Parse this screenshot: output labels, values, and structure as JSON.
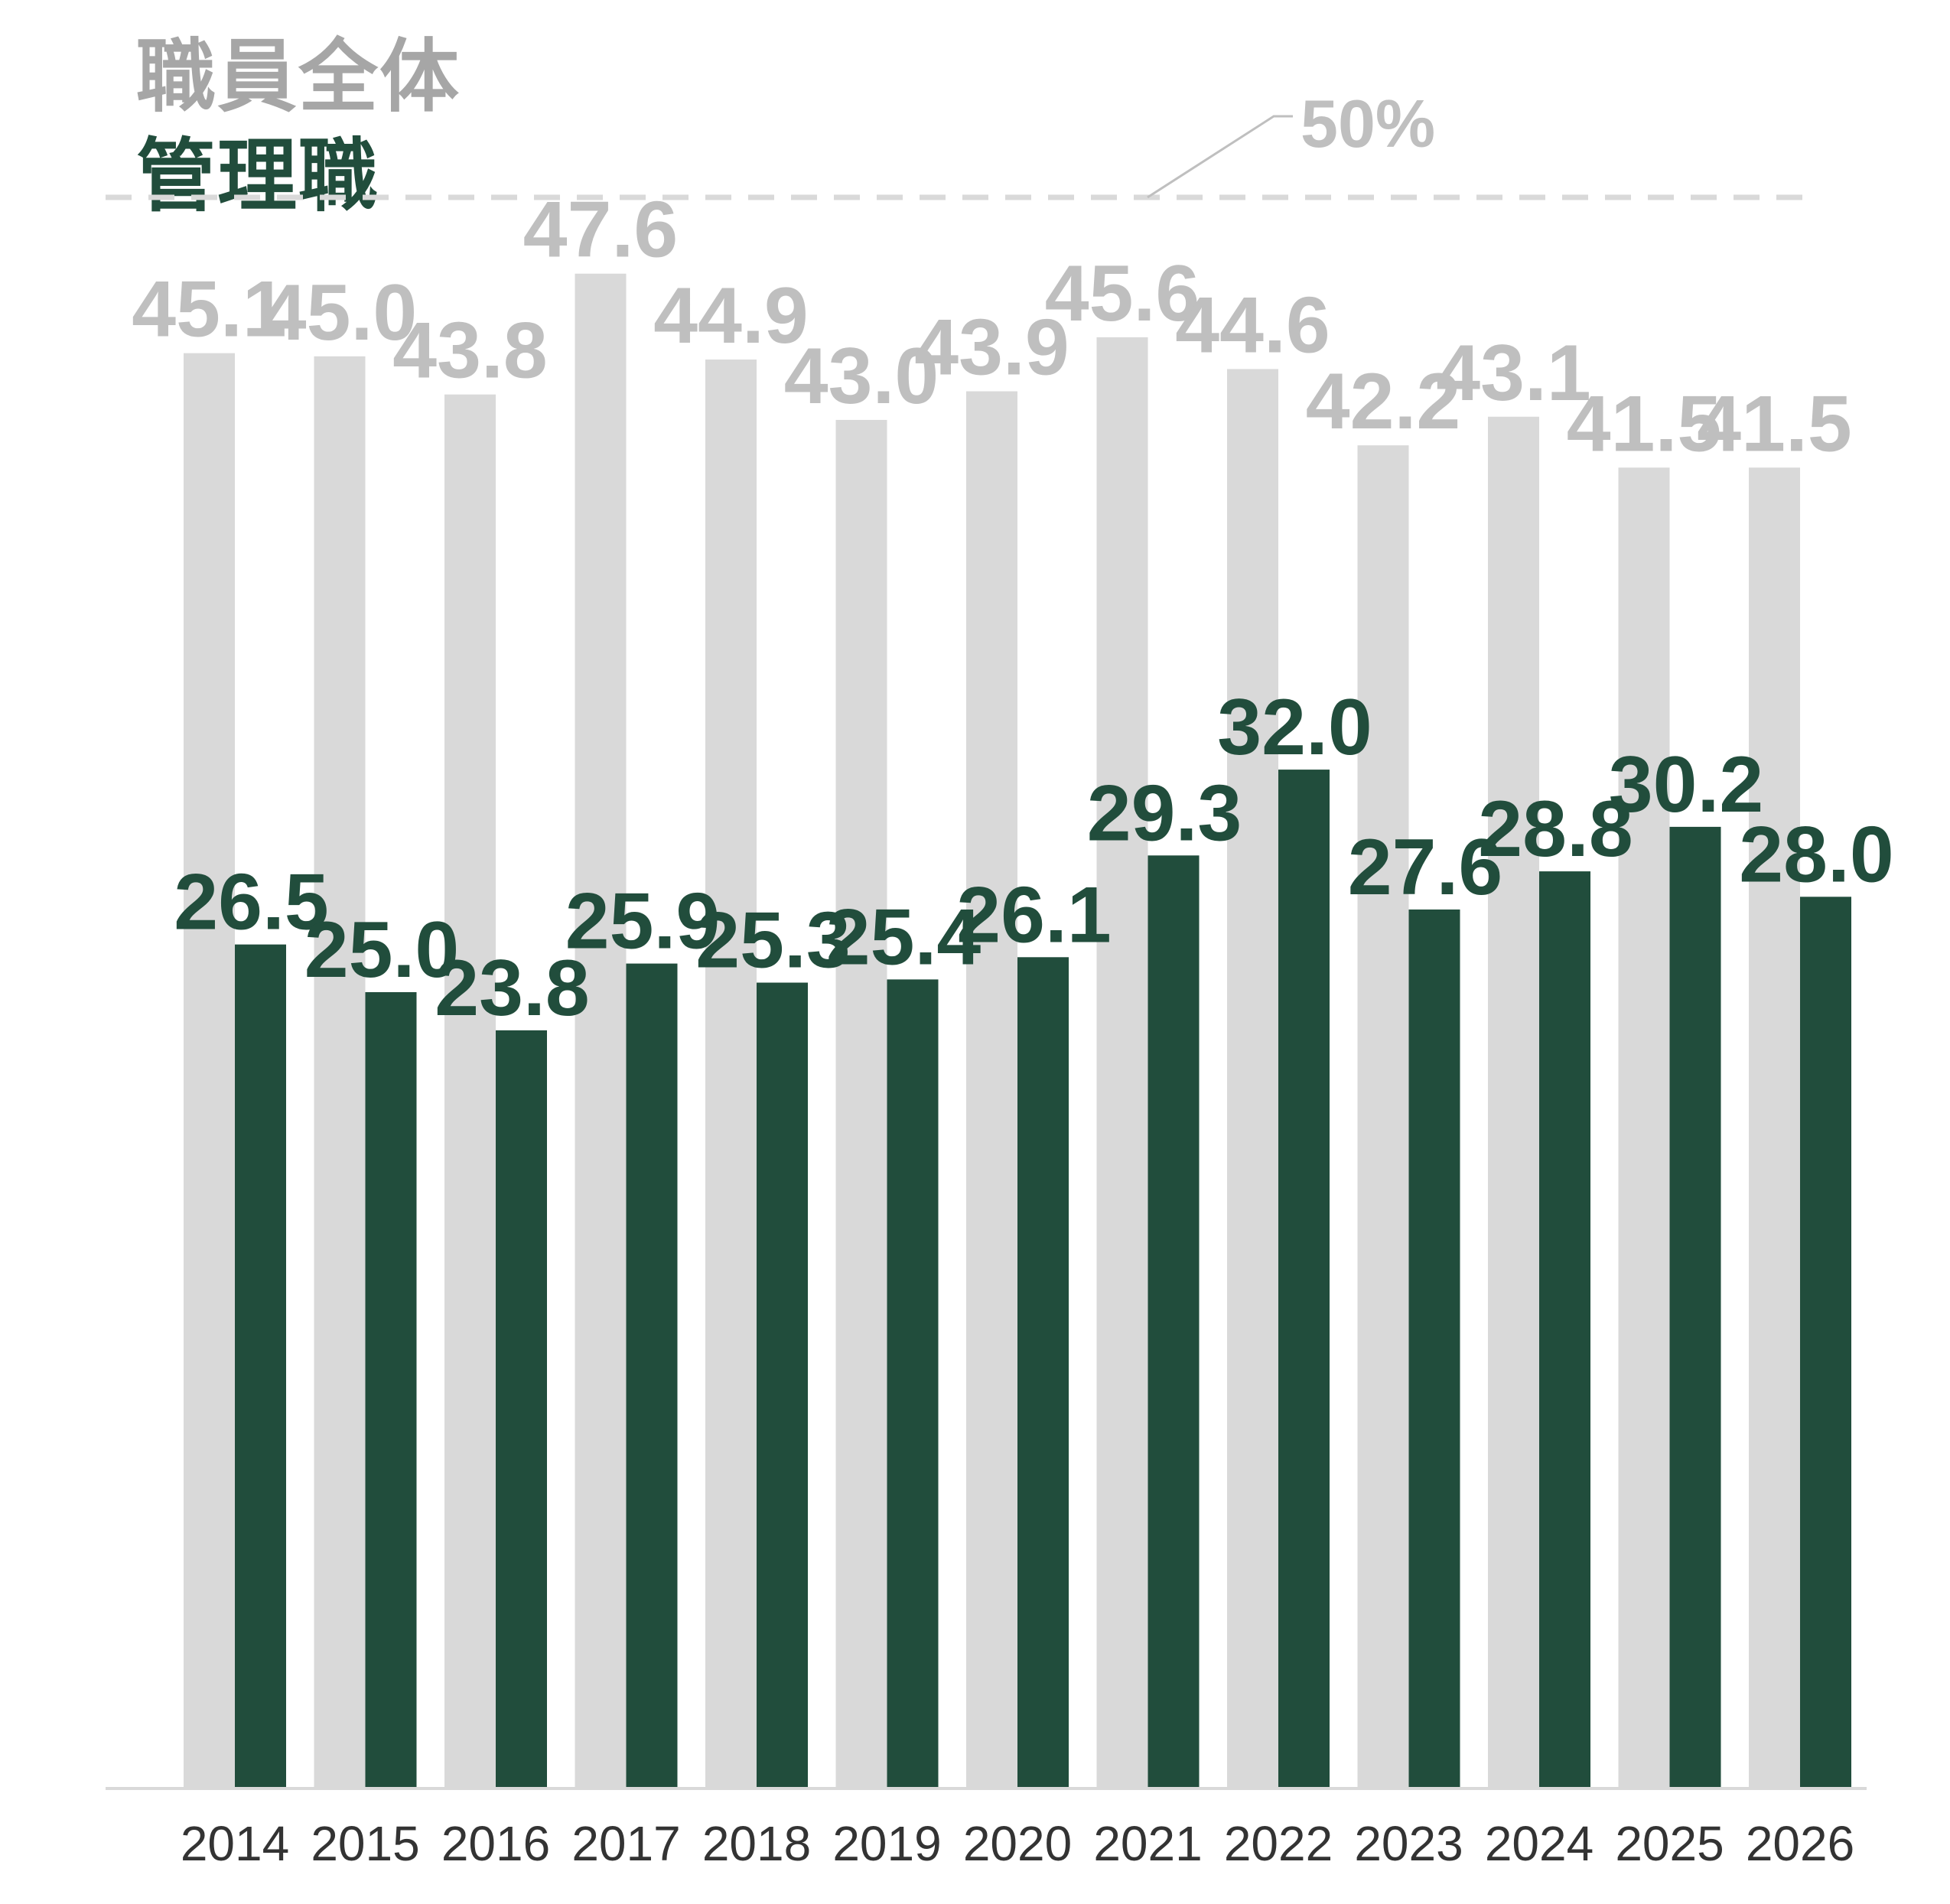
{
  "chart_data": {
    "type": "bar",
    "categories": [
      "2014",
      "2015",
      "2016",
      "2017",
      "2018",
      "2019",
      "2020",
      "2021",
      "2022",
      "2023",
      "2024",
      "2025",
      "2026"
    ],
    "series": [
      {
        "name": "職員全体",
        "color": "#d9d9d9",
        "label_color": "#bfbfbf",
        "values": [
          45.1,
          45.0,
          43.8,
          47.6,
          44.9,
          43.0,
          43.9,
          45.6,
          44.6,
          42.2,
          43.1,
          41.5,
          41.5
        ],
        "value_labels": [
          "45.1",
          "45.0",
          "43.8",
          "47.6",
          "44.9",
          "43.0",
          "43.9",
          "45.6",
          "44.6",
          "42.2",
          "43.1",
          "41.5",
          "41.5"
        ]
      },
      {
        "name": "管理職",
        "color": "#214d3c",
        "label_color": "#214d3c",
        "values": [
          26.5,
          25.0,
          23.8,
          25.9,
          25.3,
          25.4,
          26.1,
          29.3,
          32.0,
          27.6,
          28.8,
          30.2,
          28.0
        ],
        "value_labels": [
          "26.5",
          "25.0",
          "23.8",
          "25.9",
          "25.3",
          "25.4",
          "26.1",
          "29.3",
          "32.0",
          "27.6",
          "28.8",
          "30.2",
          "28.0"
        ]
      }
    ],
    "reference_line": {
      "value": 50,
      "label": "50%",
      "color": "#bfbfbf"
    },
    "ylim": [
      0,
      50
    ],
    "legend_position": "top-left",
    "grid": false,
    "title": "",
    "xlabel": "",
    "ylabel": ""
  }
}
